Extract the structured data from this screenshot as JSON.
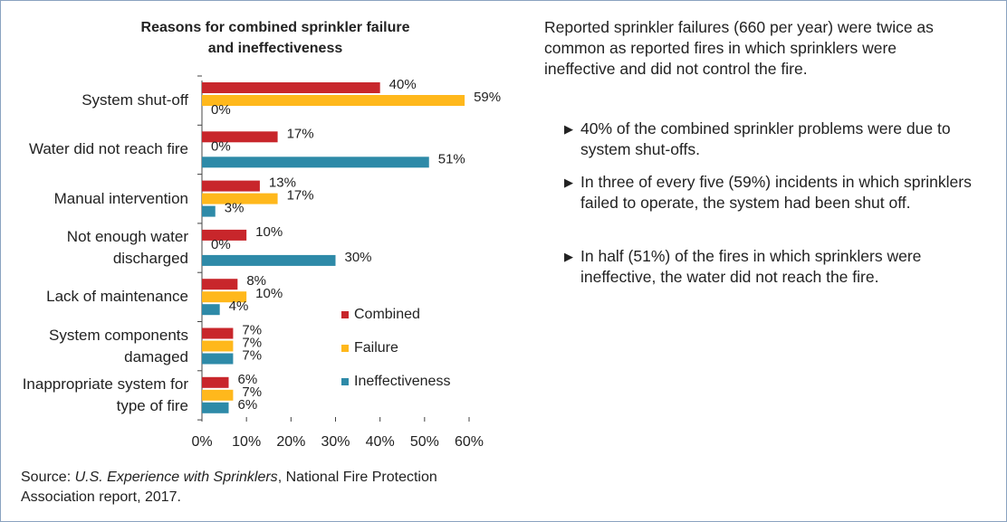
{
  "chart_data": {
    "type": "bar",
    "orientation": "horizontal",
    "title": [
      "Reasons for combined sprinkler failure",
      "and ineffectiveness"
    ],
    "categories": [
      "System shut-off",
      "Water did not reach fire",
      "Manual intervention",
      "Not enough water discharged",
      "Lack of maintenance",
      "System components damaged",
      "Inappropriate system for type of fire"
    ],
    "series": [
      {
        "name": "Combined",
        "color": "#c8262b",
        "values": [
          40,
          17,
          13,
          10,
          8,
          7,
          6
        ],
        "value_labels": [
          "40%",
          "17%",
          "13%",
          "10%",
          "8%",
          "7%",
          "6%"
        ]
      },
      {
        "name": "Failure",
        "color": "#ffb81c",
        "values": [
          59,
          0,
          17,
          0,
          10,
          7,
          7
        ],
        "value_labels": [
          "59%",
          "0%",
          "17%",
          "0%",
          "10%",
          "7%",
          "7%"
        ]
      },
      {
        "name": "Ineffectiveness",
        "color": "#2e8aa8",
        "values": [
          0,
          51,
          3,
          30,
          4,
          7,
          6
        ],
        "value_labels": [
          "0%",
          "51%",
          "3%",
          "30%",
          "4%",
          "7%",
          "6%"
        ]
      }
    ],
    "xlim": [
      0,
      60
    ],
    "xticks": [
      {
        "value": 0,
        "label": "0%"
      },
      {
        "value": 10,
        "label": "10%"
      },
      {
        "value": 20,
        "label": "20%"
      },
      {
        "value": 30,
        "label": "30%"
      },
      {
        "value": 40,
        "label": "40%"
      },
      {
        "value": 50,
        "label": "50%"
      },
      {
        "value": 60,
        "label": "60%"
      }
    ],
    "legend": "lower right"
  },
  "source": {
    "label": "Source:",
    "title": "U.S. Experience with Sprinklers",
    "rest": ", National Fire Protection Association report, 2017."
  },
  "summary": "Reported sprinkler failures (660 per year) were twice as common as reported fires in which sprinklers were ineffective and did not control the fire.",
  "bullets": [
    "40% of the combined sprinkler problems were due to system shut-offs.",
    "In three of every five (59%) incidents in which sprinklers failed to operate, the system had been shut off.",
    "In half (51%) of the fires in which sprinklers were ineffective, the water did not reach the fire."
  ]
}
